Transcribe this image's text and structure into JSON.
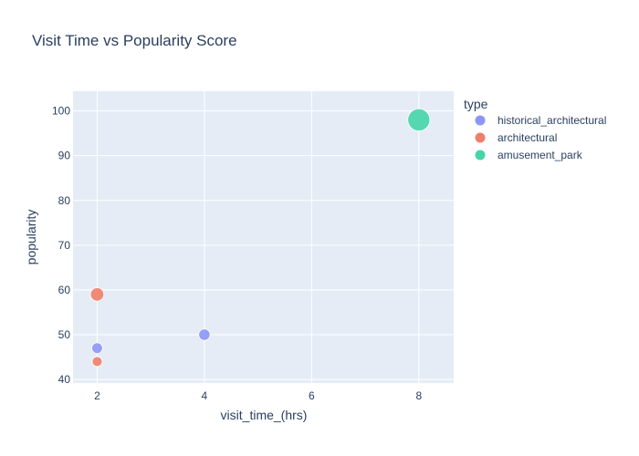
{
  "chart_data": {
    "type": "scatter",
    "title": "Visit Time vs Popularity Score",
    "xlabel": "visit_time_(hrs)",
    "ylabel": "popularity",
    "xlim": [
      1.55,
      8.65
    ],
    "ylim": [
      39.2,
      104.4
    ],
    "xticks": [
      2,
      4,
      6,
      8
    ],
    "yticks": [
      40,
      50,
      60,
      70,
      80,
      90,
      100
    ],
    "grid": true,
    "legend_title": "type",
    "legend_position": "right",
    "series": [
      {
        "name": "historical_architectural",
        "color": "#8c96f7",
        "points": [
          {
            "x": 2,
            "y": 47
          },
          {
            "x": 4,
            "y": 50
          }
        ]
      },
      {
        "name": "architectural",
        "color": "#ef7f6c",
        "points": [
          {
            "x": 2,
            "y": 59
          },
          {
            "x": 2,
            "y": 44
          }
        ]
      },
      {
        "name": "amusement_park",
        "color": "#45d5a8",
        "points": [
          {
            "x": 8,
            "y": 98
          }
        ]
      }
    ]
  }
}
